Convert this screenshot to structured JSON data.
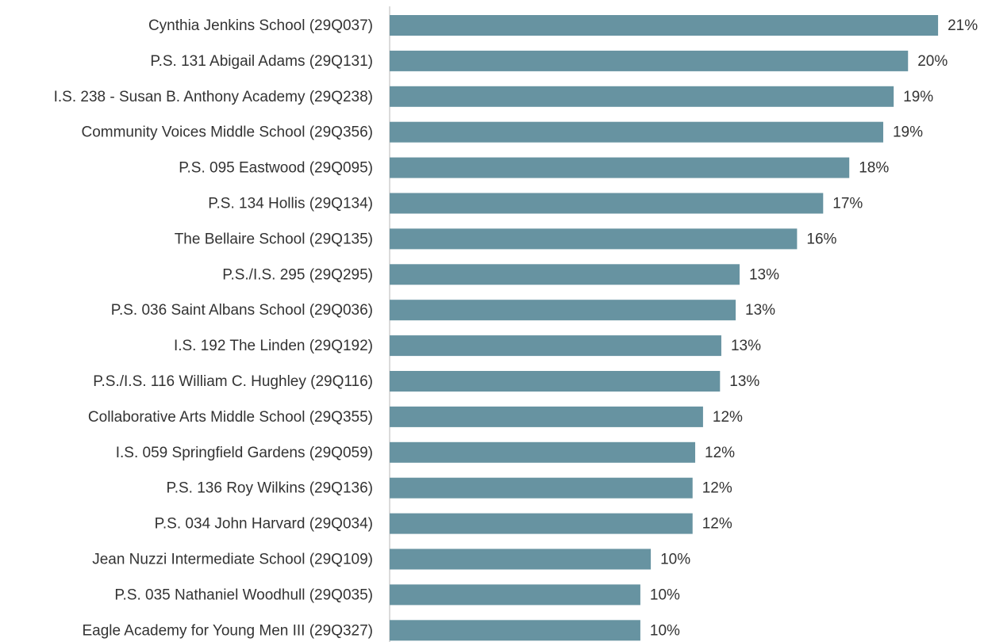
{
  "chart_data": {
    "type": "hbar",
    "categories": [
      "Cynthia Jenkins School (29Q037)",
      "P.S. 131 Abigail Adams (29Q131)",
      "I.S. 238 - Susan B. Anthony Academy (29Q238)",
      "Community Voices Middle School (29Q356)",
      "P.S. 095 Eastwood (29Q095)",
      "P.S. 134 Hollis (29Q134)",
      "The Bellaire School (29Q135)",
      "P.S./I.S. 295 (29Q295)",
      "P.S. 036 Saint Albans School (29Q036)",
      "I.S. 192 The Linden (29Q192)",
      "P.S./I.S. 116 William C. Hughley (29Q116)",
      "Collaborative Arts Middle School (29Q355)",
      "I.S. 059 Springfield Gardens (29Q059)",
      "P.S. 136 Roy Wilkins (29Q136)",
      "P.S. 034 John Harvard (29Q034)",
      "Jean Nuzzi Intermediate School (29Q109)",
      "P.S. 035 Nathaniel Woodhull (29Q035)",
      "Eagle Academy for Young Men III (29Q327)"
    ],
    "values": [
      21.0,
      19.85,
      19.3,
      18.9,
      17.6,
      16.6,
      15.6,
      13.4,
      13.25,
      12.7,
      12.65,
      12.0,
      11.7,
      11.6,
      11.6,
      10.0,
      9.6,
      9.6
    ],
    "value_labels": [
      "21%",
      "20%",
      "19%",
      "19%",
      "18%",
      "17%",
      "16%",
      "13%",
      "13%",
      "13%",
      "13%",
      "12%",
      "12%",
      "12%",
      "12%",
      "10%",
      "10%",
      "10%"
    ],
    "color": "#6793a1",
    "xlim": [
      0,
      22
    ]
  }
}
